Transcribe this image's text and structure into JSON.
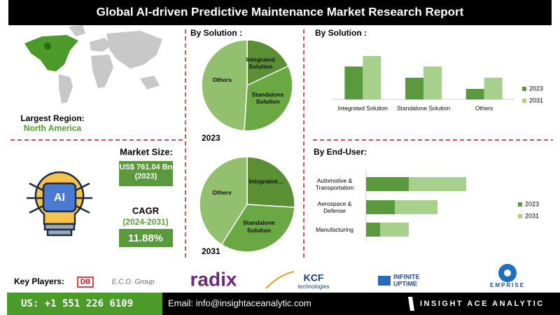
{
  "header": {
    "title": "Global AI-driven Predictive Maintenance Market  Research Report"
  },
  "region": {
    "label": "Largest Region:",
    "value": "North America"
  },
  "market_size": {
    "label": "Market Size:",
    "value": "US$ 761.04 Bn (2023)"
  },
  "cagr": {
    "label": "CAGR",
    "period": "(2024-2031)",
    "value": "11.88%"
  },
  "solution_title": "By Solution :",
  "chart_data": [
    {
      "type": "pie",
      "title": "2023",
      "categories": [
        "Integrated Solution",
        "Standalone Solution",
        "Others"
      ],
      "values": [
        18,
        33,
        49
      ],
      "colors": [
        "#5a8f34",
        "#6aa843",
        "#93c06e"
      ]
    },
    {
      "type": "pie",
      "title": "2031",
      "categories": [
        "Integrated…",
        "Standalone Solution",
        "Others"
      ],
      "values": [
        26,
        33,
        41
      ],
      "colors": [
        "#5a8f34",
        "#6aa843",
        "#93c06e"
      ]
    },
    {
      "type": "bar",
      "title": "By  Solution :",
      "categories": [
        "Integrated Solution",
        "Standalone Solution",
        "Others"
      ],
      "series": [
        {
          "name": "2023",
          "color": "#5a9a3c",
          "values": [
            47,
            31,
            15
          ]
        },
        {
          "name": "2031",
          "color": "#a8d08d",
          "values": [
            62,
            47,
            31
          ]
        }
      ]
    },
    {
      "type": "barh-stacked",
      "title": "By End-User:",
      "categories": [
        "Automotive & Transportation",
        "Aerospace & Defense",
        "Manufacturing"
      ],
      "series": [
        {
          "name": "2023",
          "color": "#5a9a3c",
          "values": [
            61,
            41,
            20
          ]
        },
        {
          "name": "2031",
          "color": "#a8d08d",
          "values": [
            82,
            61,
            41
          ]
        }
      ]
    }
  ],
  "key_players": {
    "label": "Key Players:",
    "companies": [
      "DB",
      "E.C.O. Group",
      "radix",
      "KCF",
      "technologies",
      "INFINITE",
      "UPTIME",
      "EMPRISE"
    ]
  },
  "footer": {
    "phone": "US: +1 551 226 6109",
    "email": "Email: info@insightaceanalytic.com",
    "brand": "INSIGHT ACE ANALYTIC"
  }
}
